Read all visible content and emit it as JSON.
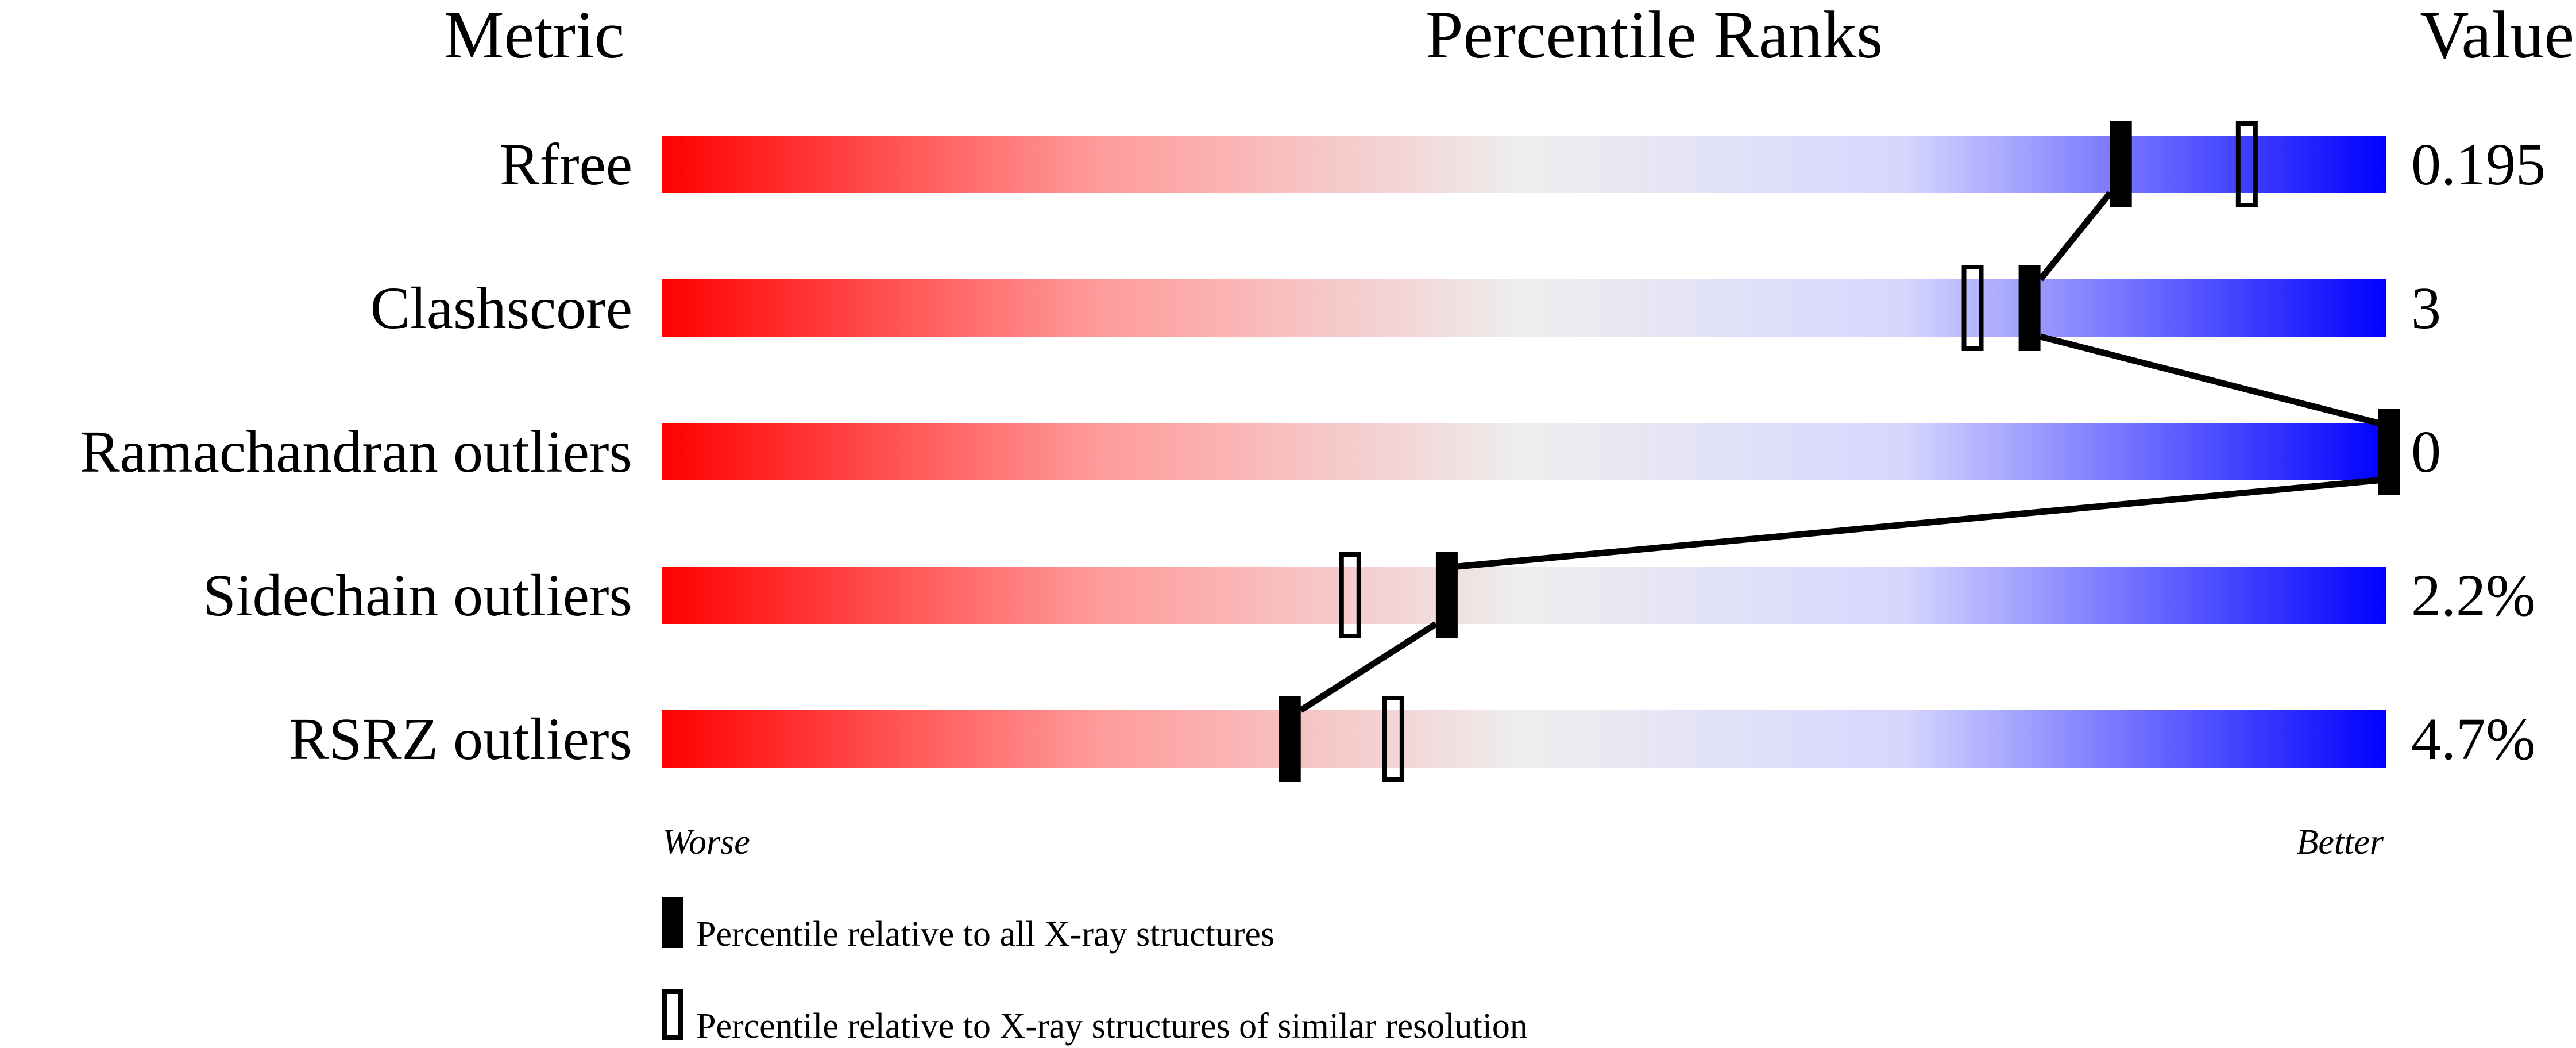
{
  "chart_data": {
    "type": "percentile-slider",
    "headers": {
      "metric": "Metric",
      "ranks": "Percentile Ranks",
      "value": "Value"
    },
    "xlim": [
      0,
      100
    ],
    "scale_ends": {
      "worse": "Worse",
      "better": "Better"
    },
    "colors": {
      "worse": "#ff0000",
      "middle": "#eeeeee",
      "better": "#0000ff",
      "marker": "#000000"
    },
    "rows": [
      {
        "metric": "Rfree",
        "value": "0.195",
        "percentile_all": 84.6,
        "percentile_similar": 91.9
      },
      {
        "metric": "Clashscore",
        "value": "3",
        "percentile_all": 79.3,
        "percentile_similar": 76.0
      },
      {
        "metric": "Ramachandran outliers",
        "value": "0",
        "percentile_all": 100,
        "percentile_similar": null
      },
      {
        "metric": "Sidechain outliers",
        "value": "2.2%",
        "percentile_all": 45.5,
        "percentile_similar": 39.9
      },
      {
        "metric": "RSRZ outliers",
        "value": "4.7%",
        "percentile_all": 36.4,
        "percentile_similar": 42.4
      }
    ],
    "legend": [
      {
        "marker": "filled",
        "label": "Percentile relative to all X-ray structures"
      },
      {
        "marker": "open",
        "label": "Percentile relative to X-ray structures of similar resolution"
      }
    ]
  }
}
